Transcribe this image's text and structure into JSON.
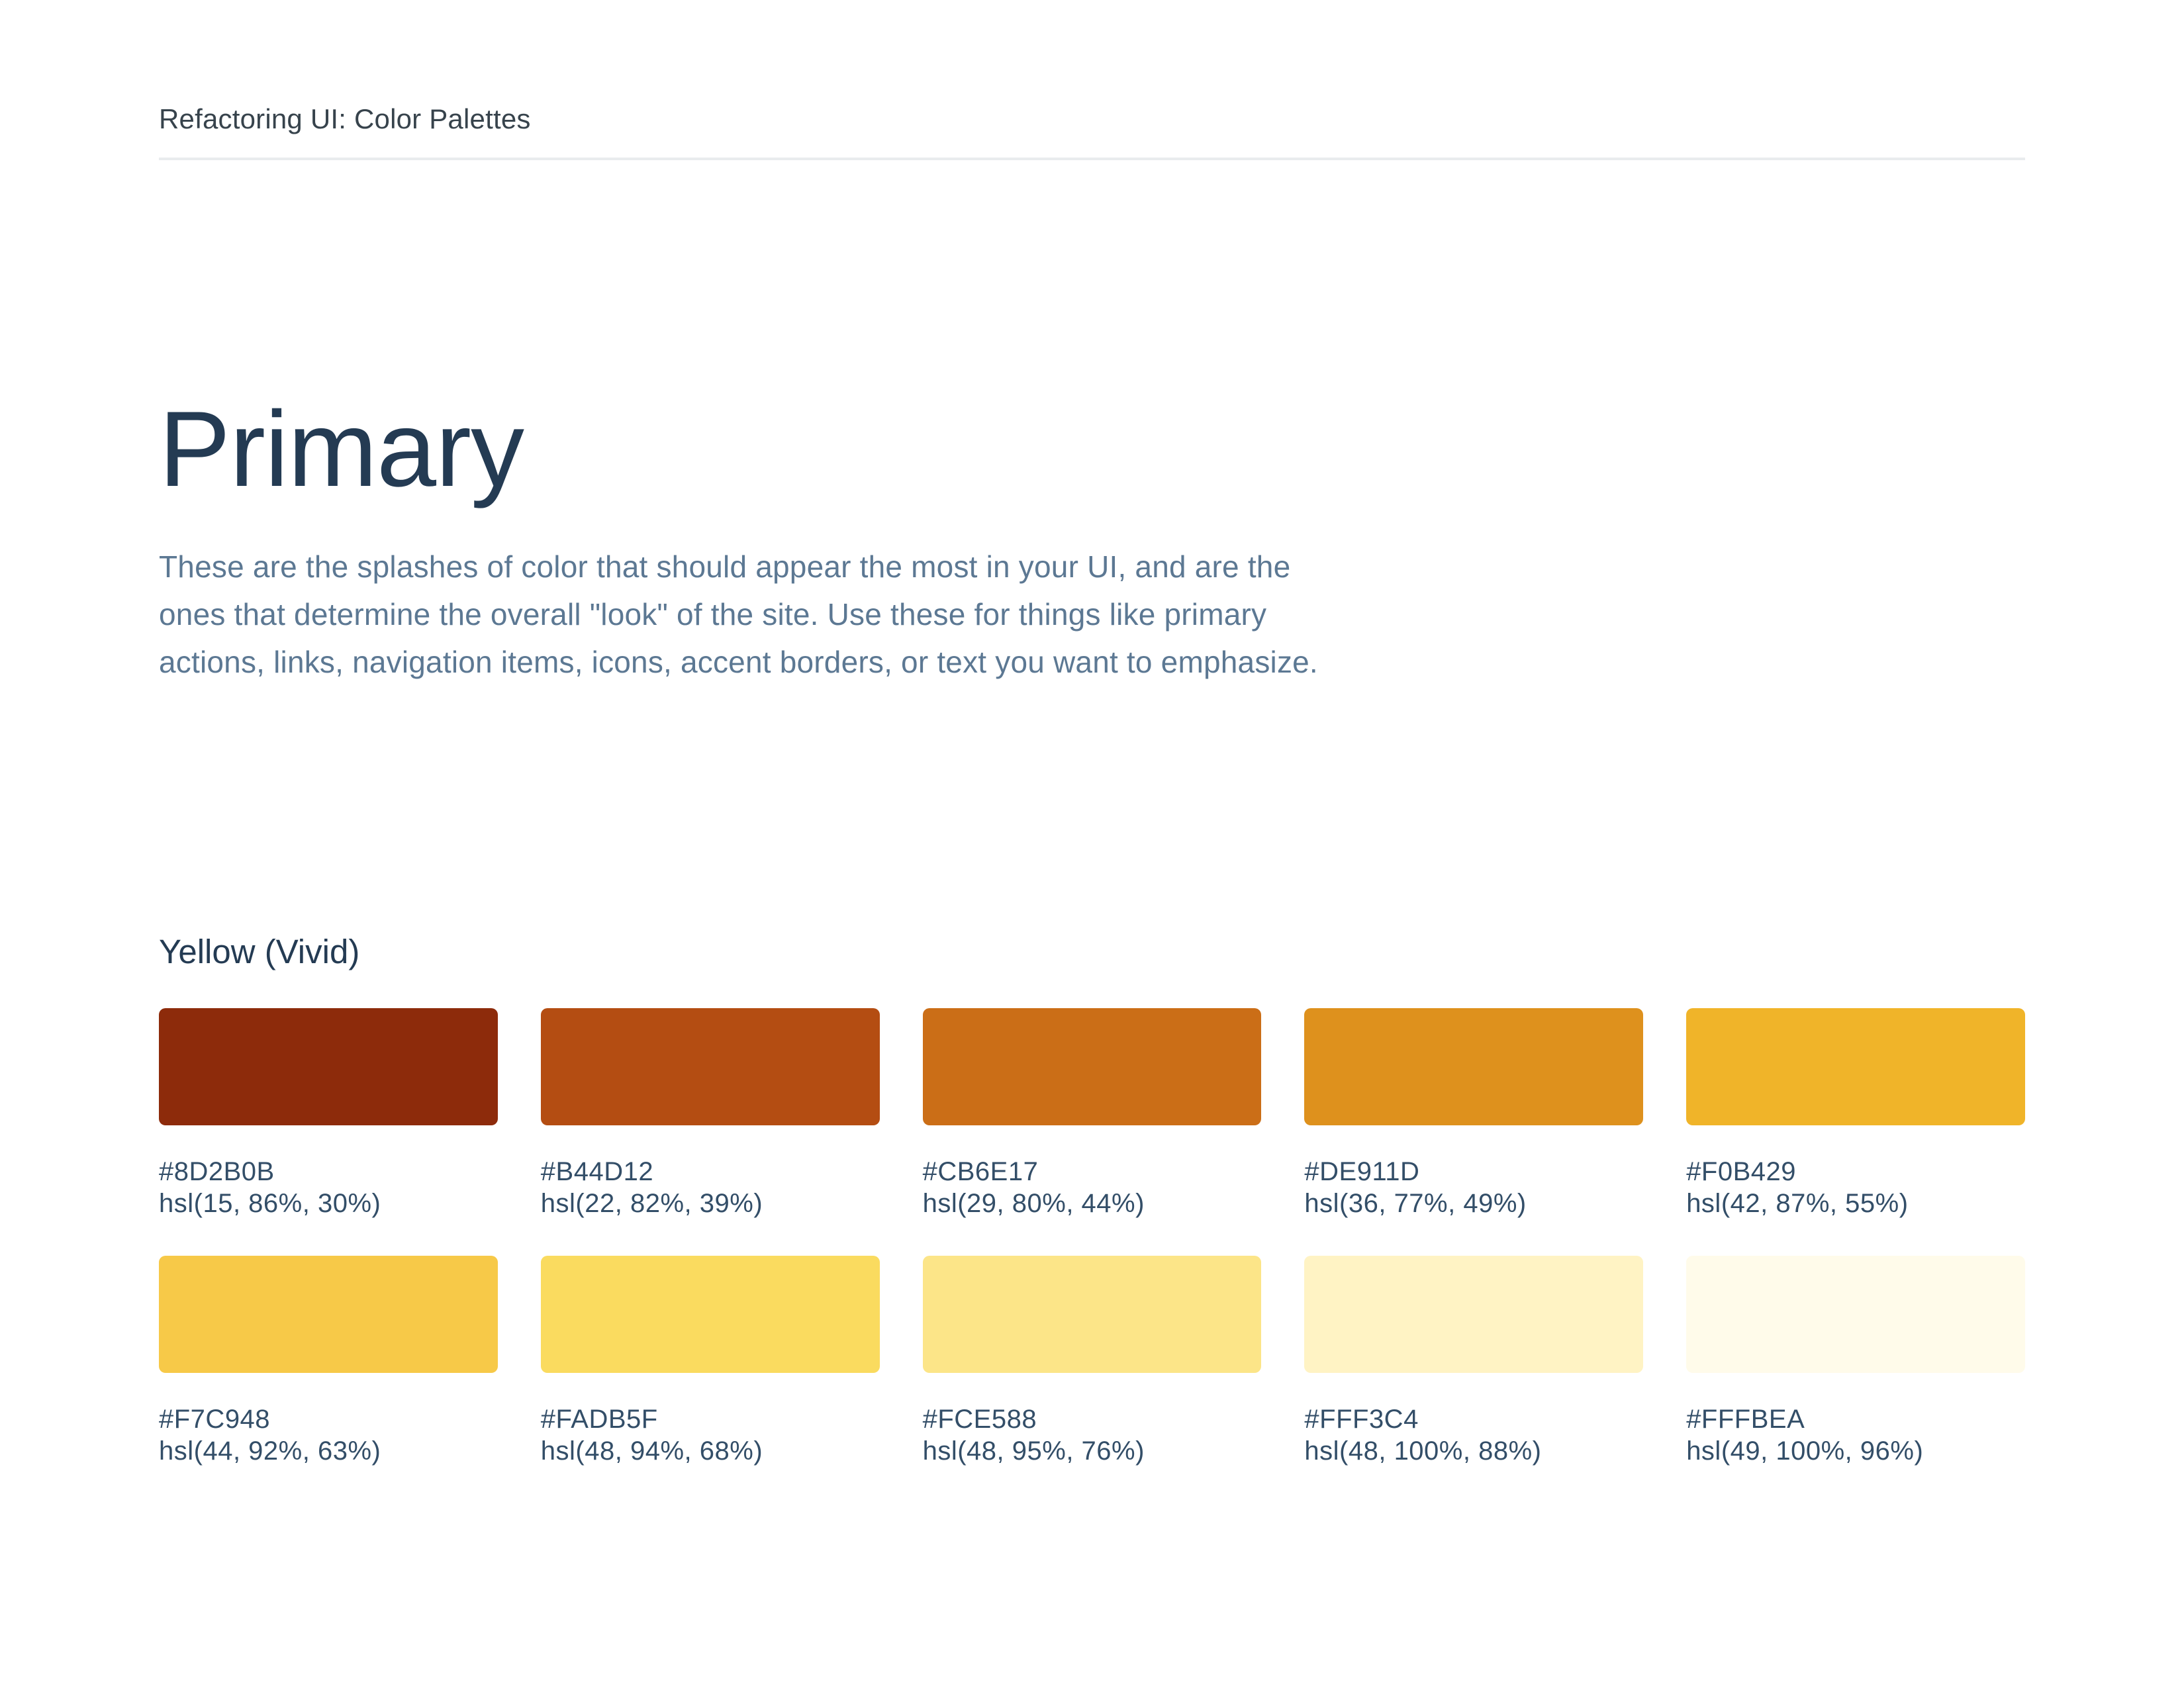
{
  "header": {
    "title": "Refactoring UI: Color Palettes"
  },
  "page": {
    "title": "Primary",
    "description": "These are the splashes of color that should appear the most in your UI, and are the ones that determine the overall \"look\" of the site. Use these for things like primary actions, links, navigation items, icons, accent borders, or text you want to emphasize."
  },
  "palette": {
    "name": "Yellow (Vivid)",
    "swatches": [
      {
        "hex": "#8D2B0B",
        "hsl": "hsl(15, 86%, 30%)"
      },
      {
        "hex": "#B44D12",
        "hsl": "hsl(22, 82%, 39%)"
      },
      {
        "hex": "#CB6E17",
        "hsl": "hsl(29, 80%, 44%)"
      },
      {
        "hex": "#DE911D",
        "hsl": "hsl(36, 77%, 49%)"
      },
      {
        "hex": "#F0B429",
        "hsl": "hsl(42, 87%, 55%)"
      },
      {
        "hex": "#F7C948",
        "hsl": "hsl(44, 92%, 63%)"
      },
      {
        "hex": "#FADB5F",
        "hsl": "hsl(48, 94%, 68%)"
      },
      {
        "hex": "#FCE588",
        "hsl": "hsl(48, 95%, 76%)"
      },
      {
        "hex": "#FFF3C4",
        "hsl": "hsl(48, 100%, 88%)"
      },
      {
        "hex": "#FFFBEA",
        "hsl": "hsl(49, 100%, 96%)"
      }
    ]
  },
  "colors": {
    "heading": "#243B53",
    "body_text": "#5C7893",
    "label_text": "#334E68",
    "header_text": "#37434C",
    "rule": "#E9ECEE",
    "background": "#FFFFFF"
  }
}
